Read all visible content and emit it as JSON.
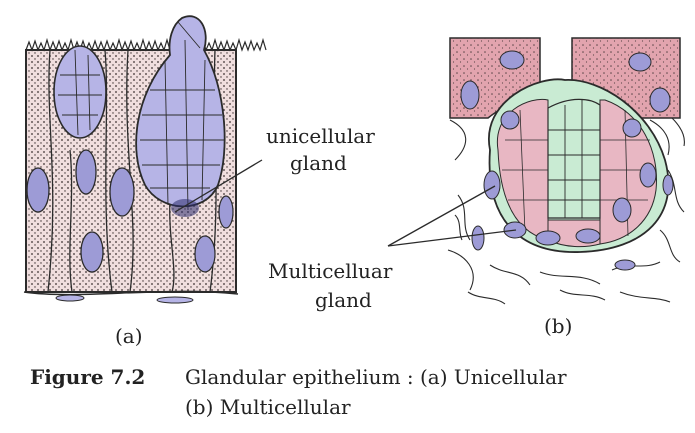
{
  "labels": {
    "unicellular_1": "unicellular",
    "unicellular_2": "gland",
    "multicellular_1": "Multicelluar",
    "multicellular_2": "gland",
    "panel_a": "(a)",
    "panel_b": "(b)"
  },
  "caption": {
    "number": "Figure 7.2",
    "line1": "Glandular epithelium : (a) Unicellular",
    "line2": "(b) Multicellular"
  },
  "colors": {
    "tissue_pink": "#f0dede",
    "goblet_purple": "#b6b4e6",
    "nucleus_purple": "#9d9bd6",
    "gland_green": "#c9ebd3",
    "acinar_pink": "#e8b7c3",
    "outline": "#2b2b2b"
  }
}
